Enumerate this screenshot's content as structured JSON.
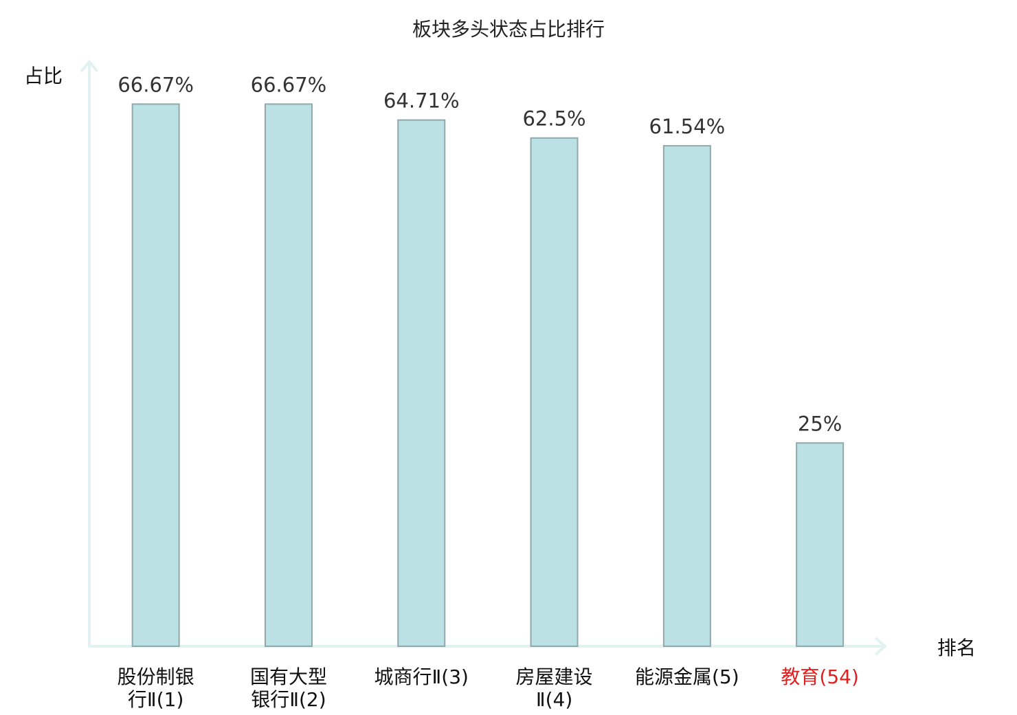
{
  "chart_data": {
    "type": "bar",
    "title": "板块多头状态占比排行",
    "ylabel": "占比",
    "xlabel": "排名",
    "ylim": [
      0,
      70
    ],
    "categories": [
      {
        "lines": [
          "股份制银",
          "行Ⅱ(1)"
        ],
        "highlight": false
      },
      {
        "lines": [
          "国有大型",
          "银行Ⅱ(2)"
        ],
        "highlight": false
      },
      {
        "lines": [
          "城商行Ⅱ(3)"
        ],
        "highlight": false
      },
      {
        "lines": [
          "房屋建设",
          "Ⅱ(4)"
        ],
        "highlight": false
      },
      {
        "lines": [
          "能源金属(5)"
        ],
        "highlight": false
      },
      {
        "lines": [
          "教育(54)"
        ],
        "highlight": true
      }
    ],
    "values": [
      66.67,
      66.67,
      64.71,
      62.5,
      61.54,
      25
    ],
    "value_labels": [
      "66.67%",
      "66.67%",
      "64.71%",
      "62.5%",
      "61.54%",
      "25%"
    ],
    "grid": false,
    "colors": {
      "bar_fill": "#bce1e4",
      "bar_stroke": "#8fa8aa",
      "axis": "#e2f2f0",
      "highlight_text": "#e02020"
    }
  }
}
